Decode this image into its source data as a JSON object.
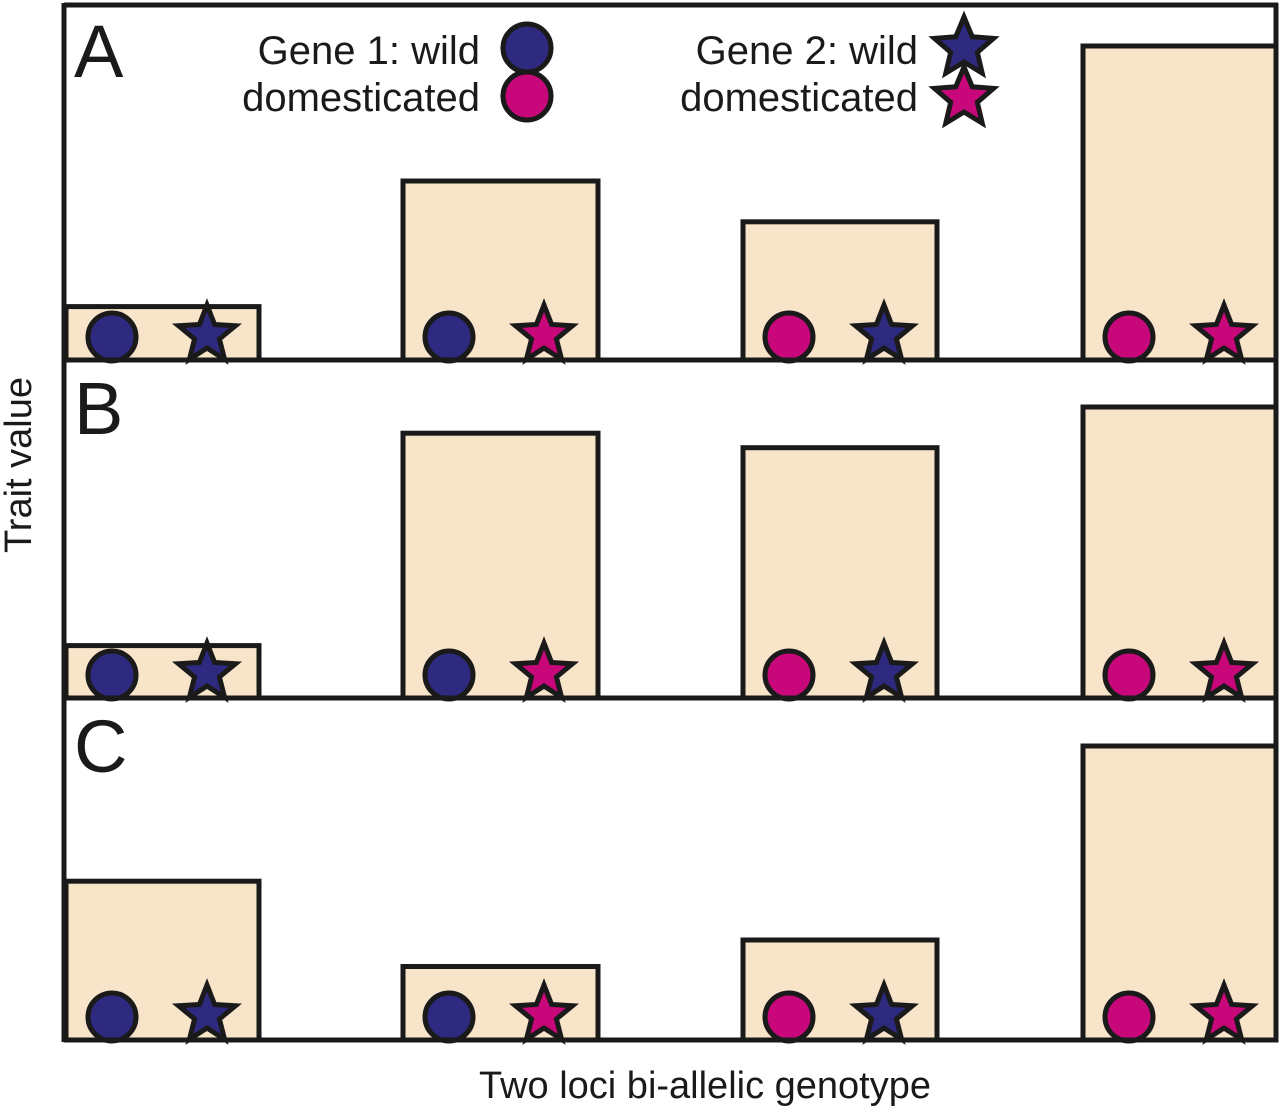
{
  "colors": {
    "bar_fill": "#f8e4c8",
    "outline": "#1a1a1a",
    "wild": "#2d2a80",
    "domesticated": "#c8087a",
    "background": "#ffffff"
  },
  "axes": {
    "xlabel": "Two loci bi-allelic genotype",
    "ylabel": "Trait value"
  },
  "legend": {
    "gene1_wild": "Gene 1:  wild",
    "gene1_domesticated": "domesticated",
    "gene2_wild": "Gene 2:  wild",
    "gene2_domesticated": "domesticated",
    "gene1_symbol": "circle-icon",
    "gene2_symbol": "star-icon"
  },
  "chart_data": [
    {
      "panel": "A",
      "type": "bar",
      "ylim": [
        0,
        100
      ],
      "categories": [
        {
          "gene1": "wild",
          "gene2": "wild"
        },
        {
          "gene1": "wild",
          "gene2": "domesticated"
        },
        {
          "gene1": "domesticated",
          "gene2": "wild"
        },
        {
          "gene1": "domesticated",
          "gene2": "domesticated"
        }
      ],
      "values": [
        17,
        57,
        44,
        100
      ]
    },
    {
      "panel": "B",
      "type": "bar",
      "ylim": [
        0,
        100
      ],
      "categories": [
        {
          "gene1": "wild",
          "gene2": "wild"
        },
        {
          "gene1": "wild",
          "gene2": "domesticated"
        },
        {
          "gene1": "domesticated",
          "gene2": "wild"
        },
        {
          "gene1": "domesticated",
          "gene2": "domesticated"
        }
      ],
      "values": [
        18,
        91,
        86,
        100
      ]
    },
    {
      "panel": "C",
      "type": "bar",
      "ylim": [
        0,
        100
      ],
      "categories": [
        {
          "gene1": "wild",
          "gene2": "wild"
        },
        {
          "gene1": "wild",
          "gene2": "domesticated"
        },
        {
          "gene1": "domesticated",
          "gene2": "wild"
        },
        {
          "gene1": "domesticated",
          "gene2": "domesticated"
        }
      ],
      "values": [
        54,
        25,
        34,
        100
      ]
    }
  ]
}
